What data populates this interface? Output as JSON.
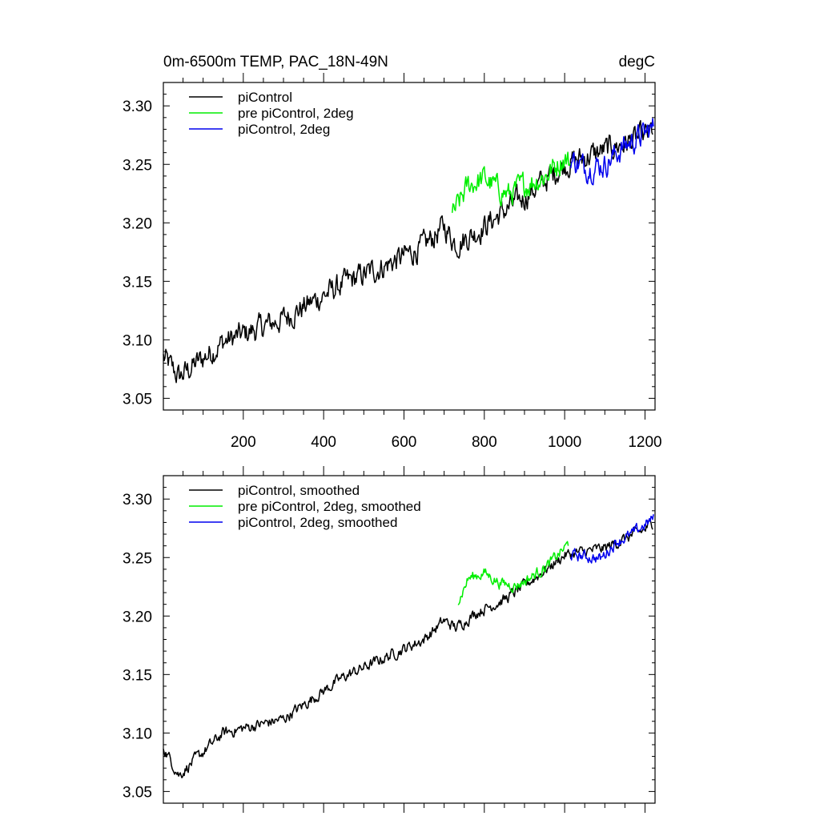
{
  "title_left": "0m-6500m TEMP, PAC_18N-49N",
  "title_right": "degC",
  "colors": {
    "piControl": "#000000",
    "pre_piControl_2deg": "#00ee00",
    "piControl_2deg": "#0000ee"
  },
  "chart_data": [
    {
      "type": "line",
      "panel": "top",
      "title": "0m-6500m TEMP, PAC_18N-49N",
      "units": "degC",
      "xlim": [
        1,
        1225
      ],
      "ylim": [
        3.04,
        3.32
      ],
      "xticks": [
        200,
        400,
        600,
        800,
        1000,
        1200
      ],
      "xtick_labels": [
        "200",
        "400",
        "600",
        "800",
        "1000",
        "1200"
      ],
      "yticks": [
        3.05,
        3.1,
        3.15,
        3.2,
        3.25,
        3.3
      ],
      "ytick_labels": [
        "3.05",
        "3.10",
        "3.15",
        "3.20",
        "3.25",
        "3.30"
      ],
      "noise": 0.011,
      "series": [
        {
          "name": "piControl",
          "color": "#000000",
          "knots_x": [
            1,
            40,
            150,
            300,
            450,
            550,
            650,
            700,
            730,
            780,
            850,
            900,
            1000,
            1100,
            1200,
            1220
          ],
          "knots_y": [
            3.085,
            3.068,
            3.098,
            3.118,
            3.148,
            3.163,
            3.18,
            3.197,
            3.182,
            3.192,
            3.21,
            3.222,
            3.25,
            3.262,
            3.274,
            3.279
          ]
        },
        {
          "name": "pre piControl, 2deg",
          "color": "#00ee00",
          "knots_x": [
            720,
            760,
            800,
            830,
            860,
            900,
            950,
            1000,
            1015
          ],
          "knots_y": [
            3.205,
            3.232,
            3.238,
            3.23,
            3.224,
            3.232,
            3.24,
            3.256,
            3.25
          ]
        },
        {
          "name": "piControl, 2deg",
          "color": "#0000ee",
          "knots_x": [
            1015,
            1050,
            1100,
            1150,
            1200,
            1222
          ],
          "knots_y": [
            3.255,
            3.247,
            3.25,
            3.266,
            3.276,
            3.282
          ]
        }
      ],
      "legend": [
        "piControl",
        "pre piControl, 2deg",
        "piControl, 2deg"
      ],
      "legend_position": "top-left"
    },
    {
      "type": "line",
      "panel": "bottom",
      "xlim": [
        1,
        1225
      ],
      "ylim": [
        3.04,
        3.32
      ],
      "xticks": [
        200,
        400,
        600,
        800,
        1000,
        1200
      ],
      "yticks": [
        3.05,
        3.1,
        3.15,
        3.2,
        3.25,
        3.3
      ],
      "ytick_labels": [
        "3.05",
        "3.10",
        "3.15",
        "3.20",
        "3.25",
        "3.30"
      ],
      "noise": 0.005,
      "series": [
        {
          "name": "piControl, smoothed",
          "color": "#000000",
          "knots_x": [
            1,
            40,
            150,
            300,
            450,
            550,
            650,
            700,
            730,
            780,
            850,
            900,
            1000,
            1100,
            1200,
            1220
          ],
          "knots_y": [
            3.088,
            3.064,
            3.1,
            3.112,
            3.148,
            3.164,
            3.18,
            3.196,
            3.19,
            3.203,
            3.214,
            3.226,
            3.252,
            3.258,
            3.274,
            3.28
          ]
        },
        {
          "name": "pre piControl, 2deg, smoothed",
          "color": "#00ee00",
          "knots_x": [
            735,
            760,
            800,
            840,
            880,
            920,
            960,
            1000,
            1010
          ],
          "knots_y": [
            3.212,
            3.232,
            3.237,
            3.228,
            3.226,
            3.234,
            3.244,
            3.258,
            3.262
          ]
        },
        {
          "name": "piControl, 2deg, smoothed",
          "color": "#0000ee",
          "knots_x": [
            1015,
            1050,
            1090,
            1130,
            1160,
            1200,
            1222
          ],
          "knots_y": [
            3.252,
            3.251,
            3.249,
            3.264,
            3.268,
            3.278,
            3.284
          ]
        }
      ],
      "legend": [
        "piControl, smoothed",
        "pre piControl, 2deg, smoothed",
        "piControl, 2deg, smoothed"
      ],
      "legend_position": "top-left"
    }
  ]
}
